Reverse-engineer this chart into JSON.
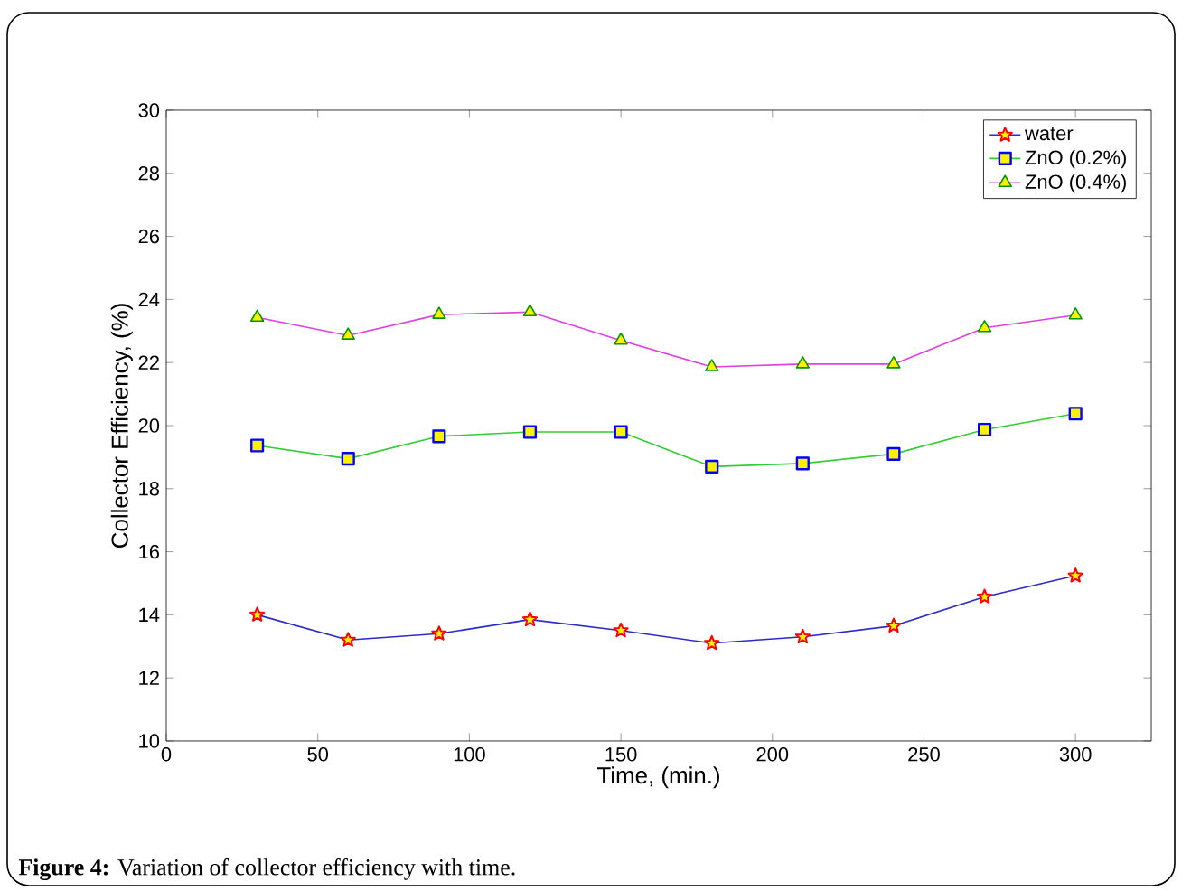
{
  "chart_data": {
    "type": "line",
    "xlabel": "Time, (min.)",
    "ylabel": "Collector Efficiency, (%)",
    "x": [
      30,
      60,
      90,
      120,
      150,
      180,
      210,
      240,
      270,
      300
    ],
    "series": [
      {
        "name": "water",
        "color": "#2b2bc8",
        "marker": "star",
        "values": [
          14.0,
          13.2,
          13.4,
          13.85,
          13.5,
          13.1,
          13.3,
          13.65,
          14.57,
          15.24
        ]
      },
      {
        "name": "ZnO (0.2%)",
        "color": "#33cc33",
        "marker": "square",
        "values": [
          19.37,
          18.95,
          19.66,
          19.8,
          19.8,
          18.7,
          18.8,
          19.1,
          19.87,
          20.38
        ]
      },
      {
        "name": "ZnO (0.4%)",
        "color": "#e040e0",
        "marker": "triangle",
        "values": [
          23.43,
          22.86,
          23.52,
          23.6,
          22.7,
          21.86,
          21.95,
          21.95,
          23.1,
          23.5
        ]
      }
    ],
    "xlim": [
      0,
      325
    ],
    "ylim": [
      10,
      30
    ],
    "xticks": [
      0,
      50,
      100,
      150,
      200,
      250,
      300
    ],
    "yticks": [
      10,
      12,
      14,
      16,
      18,
      20,
      22,
      24,
      26,
      28,
      30
    ],
    "legend": "top right",
    "grid": false,
    "line_style": "solid",
    "annotations": [
      "**Figure 4:** Variation of collector efficiency with time."
    ]
  }
}
